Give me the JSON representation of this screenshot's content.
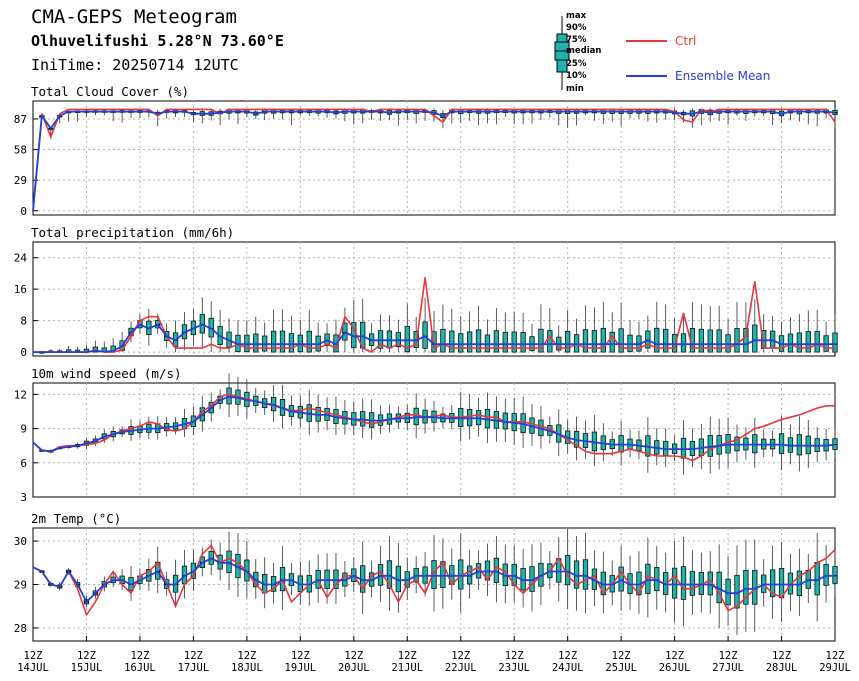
{
  "header": {
    "title": "CMA-GEPS Meteogram",
    "station": "Olhuvelifushi 5.28°N 73.60°E",
    "init_time": "IniTime: 20250714 12UTC"
  },
  "legend": {
    "box_labels": [
      "max",
      "90%",
      "75%",
      "median",
      "25%",
      "10%",
      "min"
    ],
    "ctrl_label": "Ctrl",
    "mean_label": "Ensemble Mean"
  },
  "colors": {
    "ctrl": "#e8363a",
    "mean": "#2340d8",
    "box_fill": "#1fb3ae",
    "whisker": "#333333",
    "grid": "#b5b5b5"
  },
  "chart_data": {
    "type": "line",
    "time_axis": {
      "start": "2025-07-14 12UTC",
      "step_hours": 6,
      "tick_labels": [
        [
          "12Z",
          "14JUL"
        ],
        [
          "12Z",
          "15JUL"
        ],
        [
          "12Z",
          "16JUL"
        ],
        [
          "12Z",
          "17JUL"
        ],
        [
          "12Z",
          "18JUL"
        ],
        [
          "12Z",
          "19JUL"
        ],
        [
          "12Z",
          "20JUL"
        ],
        [
          "12Z",
          "21JUL"
        ],
        [
          "12Z",
          "22JUL"
        ],
        [
          "12Z",
          "23JUL"
        ],
        [
          "12Z",
          "24JUL"
        ],
        [
          "12Z",
          "25JUL"
        ],
        [
          "12Z",
          "26JUL"
        ],
        [
          "12Z",
          "27JUL"
        ],
        [
          "12Z",
          "28JUL"
        ],
        [
          "12Z",
          "29JUL"
        ]
      ]
    },
    "panels": [
      {
        "title": "Total Cloud Cover (%)",
        "ylim": [
          -4,
          104
        ],
        "yticks": [
          0,
          29,
          58,
          87
        ],
        "ctrl": [
          0,
          92,
          70,
          92,
          96,
          96,
          96,
          96,
          96,
          96,
          96,
          96,
          96,
          96,
          90,
          96,
          96,
          96,
          96,
          96,
          96,
          92,
          96,
          96,
          96,
          96,
          96,
          96,
          96,
          96,
          96,
          96,
          96,
          96,
          96,
          96,
          96,
          96,
          94,
          96,
          96,
          96,
          96,
          96,
          96,
          90,
          84,
          96,
          96,
          96,
          96,
          96,
          96,
          96,
          96,
          96,
          96,
          96,
          96,
          96,
          96,
          96,
          96,
          96,
          96,
          96,
          96,
          96,
          96,
          96,
          96,
          96,
          94,
          86,
          84,
          96,
          94,
          96,
          96,
          96,
          96,
          96,
          96,
          96,
          96,
          96,
          96,
          96,
          96,
          96,
          84
        ],
        "mean": [
          0,
          90,
          78,
          90,
          94,
          94,
          94,
          94,
          94,
          94,
          94,
          94,
          94,
          94,
          92,
          94,
          94,
          94,
          92,
          92,
          92,
          93,
          94,
          94,
          94,
          92,
          94,
          94,
          94,
          94,
          94,
          94,
          94,
          94,
          93,
          94,
          94,
          94,
          94,
          94,
          93,
          94,
          94,
          94,
          94,
          93,
          90,
          94,
          94,
          94,
          94,
          94,
          94,
          94,
          94,
          94,
          94,
          94,
          94,
          94,
          94,
          94,
          94,
          94,
          94,
          94,
          94,
          94,
          94,
          94,
          94,
          94,
          93,
          92,
          92,
          94,
          93,
          94,
          94,
          94,
          94,
          94,
          94,
          94,
          92,
          94,
          94,
          94,
          94,
          94,
          93
        ]
      },
      {
        "title": "Total precipitation (mm/6h)",
        "ylim": [
          -1,
          28
        ],
        "yticks": [
          0,
          8,
          16,
          24
        ],
        "ctrl": [
          0,
          0,
          0,
          0,
          0,
          0,
          0,
          0.5,
          0,
          0,
          0.5,
          4,
          8,
          9,
          9,
          4,
          1,
          1,
          1,
          1,
          2,
          1,
          1,
          2,
          1,
          1,
          1,
          1,
          1,
          1,
          2,
          1,
          1,
          2,
          1,
          9,
          6,
          1,
          0,
          2,
          1,
          2,
          1,
          2,
          19,
          1,
          2,
          1,
          1,
          1,
          1,
          1,
          1,
          1,
          1,
          1,
          1,
          1,
          4,
          1,
          1,
          2,
          1,
          1,
          1,
          4,
          1,
          1,
          1,
          2,
          1,
          1,
          1,
          10,
          1,
          1,
          1,
          1,
          1,
          2,
          4,
          18,
          1,
          1,
          1,
          2,
          1,
          1,
          2,
          1,
          1
        ],
        "mean": [
          0,
          0,
          0,
          0,
          0,
          0,
          0,
          0.3,
          0.1,
          0.3,
          1.5,
          5,
          7,
          6,
          7,
          4,
          3,
          5,
          6,
          7,
          6,
          4,
          3,
          2,
          2,
          2,
          2,
          2,
          2,
          2,
          2,
          2,
          2,
          3,
          2,
          5,
          4,
          4,
          3,
          3,
          3,
          3,
          3,
          3,
          4,
          2,
          2,
          2,
          2,
          2,
          2,
          2,
          2,
          2,
          2,
          2,
          2,
          2,
          2,
          2,
          2,
          2,
          2,
          2,
          2,
          2,
          2,
          2,
          2,
          3,
          2,
          2,
          2,
          2,
          2,
          2,
          2,
          2,
          2,
          2,
          2,
          3,
          3,
          3,
          2,
          2,
          2,
          2,
          2,
          2,
          2
        ]
      },
      {
        "title": "10m wind speed (m/s)",
        "ylim": [
          3,
          13
        ],
        "yticks": [
          3,
          6,
          9,
          12
        ],
        "ctrl": [
          7.8,
          7.1,
          7.0,
          7.4,
          7.5,
          7.5,
          7.6,
          7.7,
          8.0,
          8.5,
          8.8,
          9.0,
          9.2,
          9.6,
          9.4,
          8.9,
          8.8,
          9.0,
          9.6,
          10.5,
          11.0,
          11.8,
          12.0,
          11.8,
          11.6,
          11.4,
          11.2,
          11.0,
          10.8,
          10.6,
          10.6,
          10.8,
          10.6,
          10.4,
          10.2,
          10.0,
          9.8,
          9.6,
          9.4,
          9.6,
          9.8,
          10.0,
          10.2,
          10.2,
          10.0,
          10.1,
          10.2,
          10.0,
          10.0,
          10.1,
          10.2,
          10.0,
          10.0,
          9.6,
          9.6,
          9.6,
          9.4,
          9.2,
          9.0,
          8.5,
          8.0,
          7.5,
          7.0,
          6.8,
          6.8,
          6.8,
          7.0,
          7.2,
          7.0,
          6.8,
          6.6,
          6.6,
          6.6,
          6.5,
          6.2,
          6.6,
          7.2,
          7.5,
          7.8,
          8.0,
          8.5,
          9.0,
          9.2,
          9.5,
          9.8,
          10.0,
          10.2,
          10.5,
          10.8,
          11.0,
          11.0
        ],
        "mean": [
          7.8,
          7.1,
          7.0,
          7.3,
          7.4,
          7.5,
          7.7,
          7.9,
          8.3,
          8.5,
          8.7,
          8.8,
          8.9,
          9.0,
          9.0,
          9.1,
          9.2,
          9.4,
          9.6,
          10.2,
          10.8,
          11.5,
          11.8,
          11.7,
          11.5,
          11.4,
          11.2,
          11.1,
          10.8,
          10.5,
          10.4,
          10.3,
          10.2,
          10.2,
          10.0,
          9.9,
          9.8,
          9.8,
          9.7,
          9.7,
          9.8,
          9.9,
          9.9,
          10.0,
          10.0,
          10.0,
          9.9,
          9.9,
          9.9,
          9.9,
          9.9,
          9.8,
          9.7,
          9.6,
          9.5,
          9.4,
          9.2,
          9.0,
          8.8,
          8.5,
          8.2,
          8.0,
          7.9,
          7.8,
          7.7,
          7.6,
          7.6,
          7.6,
          7.5,
          7.4,
          7.3,
          7.2,
          7.2,
          7.2,
          7.2,
          7.3,
          7.4,
          7.5,
          7.6,
          7.6,
          7.6,
          7.6,
          7.6,
          7.6,
          7.6,
          7.5,
          7.5,
          7.5,
          7.5,
          7.5,
          7.6
        ]
      },
      {
        "title": "2m Temp (°C)",
        "ylim": [
          27.7,
          30.3
        ],
        "yticks": [
          28,
          29,
          30
        ],
        "ctrl": [
          29.4,
          29.3,
          29.0,
          28.95,
          29.3,
          28.9,
          28.3,
          28.6,
          29.0,
          29.3,
          29.0,
          28.8,
          29.2,
          29.3,
          29.5,
          29.0,
          28.5,
          29.0,
          29.2,
          29.7,
          29.9,
          29.5,
          29.6,
          29.5,
          29.3,
          29.0,
          28.8,
          28.9,
          29.1,
          28.6,
          28.8,
          29.0,
          29.1,
          28.7,
          29.0,
          29.2,
          29.2,
          28.9,
          29.2,
          29.3,
          29.0,
          28.6,
          29.0,
          29.1,
          28.8,
          29.3,
          29.5,
          29.0,
          29.2,
          29.3,
          29.4,
          29.1,
          29.4,
          29.3,
          29.0,
          28.8,
          29.0,
          29.2,
          29.3,
          29.6,
          29.2,
          29.0,
          29.1,
          29.2,
          28.8,
          29.0,
          29.3,
          29.0,
          28.8,
          29.2,
          29.1,
          29.0,
          29.2,
          28.9,
          28.9,
          29.0,
          29.1,
          28.8,
          28.4,
          28.5,
          28.7,
          28.9,
          29.0,
          28.8,
          28.7,
          29.0,
          29.2,
          29.3,
          29.5,
          29.6,
          29.8
        ],
        "mean": [
          29.4,
          29.3,
          29.0,
          28.95,
          29.3,
          29.0,
          28.6,
          28.8,
          29.0,
          29.1,
          29.1,
          29.0,
          29.1,
          29.2,
          29.3,
          29.0,
          29.0,
          29.2,
          29.3,
          29.5,
          29.6,
          29.5,
          29.5,
          29.4,
          29.3,
          29.1,
          29.0,
          29.0,
          29.1,
          29.1,
          29.0,
          29.0,
          29.1,
          29.1,
          29.1,
          29.1,
          29.2,
          29.1,
          29.1,
          29.2,
          29.2,
          29.1,
          29.1,
          29.2,
          29.2,
          29.2,
          29.2,
          29.2,
          29.2,
          29.2,
          29.3,
          29.3,
          29.3,
          29.2,
          29.2,
          29.1,
          29.1,
          29.2,
          29.3,
          29.3,
          29.3,
          29.2,
          29.2,
          29.1,
          29.0,
          29.0,
          29.1,
          29.0,
          29.0,
          29.1,
          29.1,
          29.0,
          29.0,
          29.0,
          29.0,
          29.0,
          29.0,
          28.9,
          28.8,
          28.8,
          28.9,
          28.9,
          29.0,
          29.0,
          29.0,
          29.0,
          29.0,
          29.1,
          29.1,
          29.2,
          29.2
        ]
      }
    ]
  }
}
